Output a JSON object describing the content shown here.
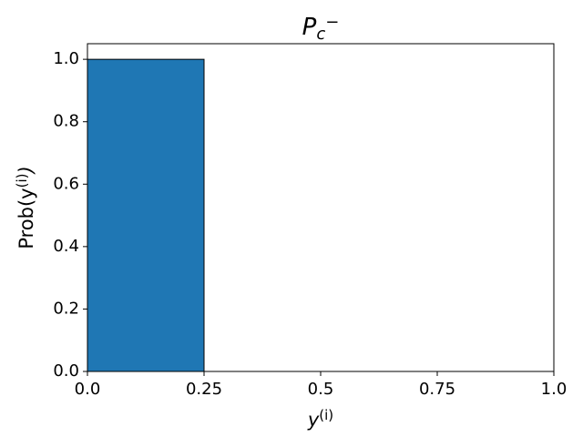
{
  "chart_data": {
    "type": "histogram",
    "title": [
      {
        "text": "P"
      },
      {
        "text": "c",
        "sub": true
      },
      {
        "text": "−",
        "sup": true
      }
    ],
    "x_label": [
      {
        "text": "y"
      },
      {
        "text": "(i)",
        "sup": true
      }
    ],
    "y_label": [
      {
        "text": "Prob(y"
      },
      {
        "text": "(i)",
        "sup": true
      },
      {
        "text": ")"
      }
    ],
    "bins": [
      0,
      0.25,
      0.5,
      0.75,
      1.0
    ],
    "counts": [
      1,
      0,
      0,
      0
    ],
    "color": "#1f77b4",
    "edgecolor": "#000000",
    "xlim": [
      0,
      1
    ],
    "ylim": [
      0,
      1.05
    ],
    "xticks": [
      {
        "value": 0,
        "label": "0.0"
      },
      0.25,
      0.5,
      0.75,
      {
        "value": 1,
        "label": "1.0"
      }
    ],
    "yticks": [
      {
        "value": 0,
        "label": "0.0"
      },
      0.2,
      0.4,
      0.6,
      0.8,
      {
        "value": 1,
        "label": "1.0"
      }
    ],
    "grid": false
  }
}
